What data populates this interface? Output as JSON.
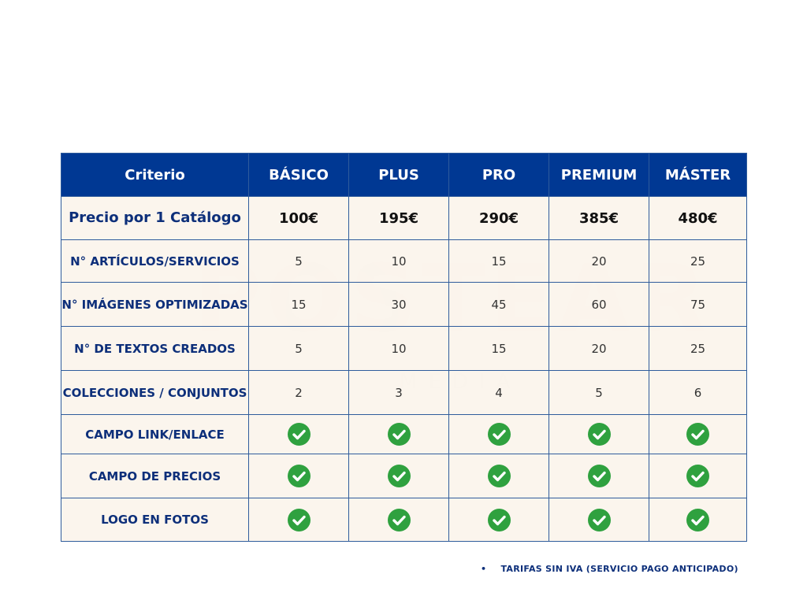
{
  "watermark": {
    "text": "POSTEAR",
    "sub": "MEDIA"
  },
  "table": {
    "headers": [
      "Criterio",
      "BÁSICO",
      "PLUS",
      "PRO",
      "PREMIUM",
      "MÁSTER"
    ],
    "rows": [
      {
        "label": "Precio por 1 Catálogo",
        "kind": "price",
        "values": [
          "100€",
          "195€",
          "290€",
          "385€",
          "480€"
        ]
      },
      {
        "label": "N° ARTÍCULOS/SERVICIOS",
        "kind": "value",
        "values": [
          "5",
          "10",
          "15",
          "20",
          "25"
        ]
      },
      {
        "label": "N° IMÁGENES OPTIMIZADAS",
        "kind": "value",
        "values": [
          "15",
          "30",
          "45",
          "60",
          "75"
        ]
      },
      {
        "label": "N° DE TEXTOS CREADOS",
        "kind": "value",
        "values": [
          "5",
          "10",
          "15",
          "20",
          "25"
        ]
      },
      {
        "label": "COLECCIONES / CONJUNTOS",
        "kind": "value",
        "values": [
          "2",
          "3",
          "4",
          "5",
          "6"
        ]
      },
      {
        "label": "CAMPO LINK/ENLACE",
        "kind": "check",
        "values": [
          true,
          true,
          true,
          true,
          true
        ]
      },
      {
        "label": "CAMPO DE PRECIOS",
        "kind": "check",
        "values": [
          true,
          true,
          true,
          true,
          true
        ]
      },
      {
        "label": "LOGO EN FOTOS",
        "kind": "check",
        "values": [
          true,
          true,
          true,
          true,
          true
        ]
      }
    ]
  },
  "colors": {
    "header_bg": "#003893",
    "label_text": "#0d2f7a",
    "cell_bg": "#fbf4ec",
    "check": "#2fa13f"
  },
  "footnote": {
    "bullet": "•",
    "text": "TARIFAS SIN IVA (SERVICIO PAGO ANTICIPADO)"
  }
}
